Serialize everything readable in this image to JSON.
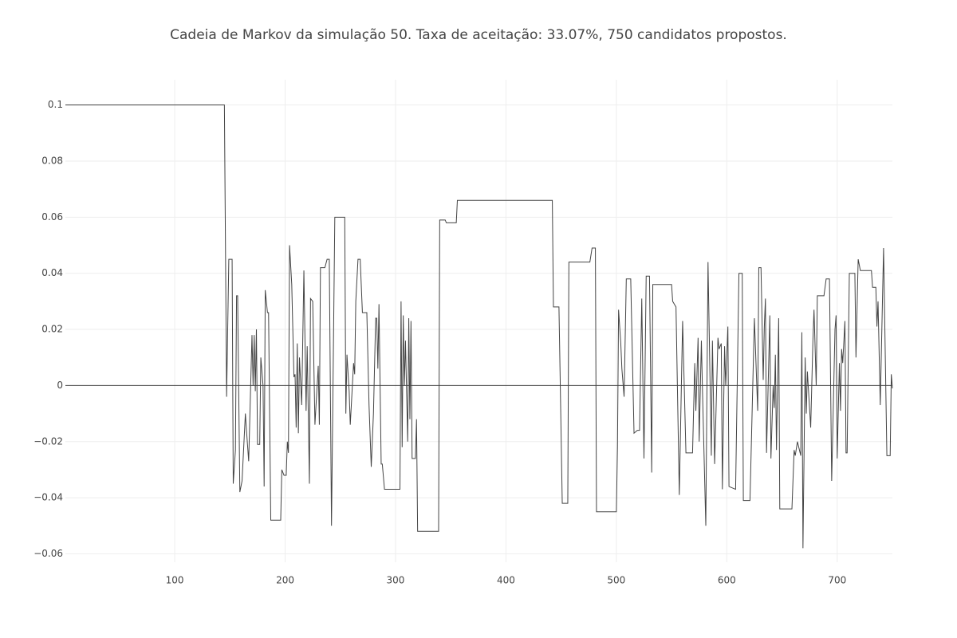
{
  "chart_data": {
    "type": "line",
    "title": "Cadeia de Markov da simulação 50. Taxa de aceitação: 33.07%, 750 candidatos propostos.",
    "color": "#444444",
    "grid": true,
    "zeroline": true,
    "xlim": [
      1,
      750
    ],
    "ylim": [
      -0.063,
      0.109
    ],
    "xticks": [
      100,
      200,
      300,
      400,
      500,
      600,
      700
    ],
    "yticks": [
      {
        "value": -0.06,
        "label": "−0.06"
      },
      {
        "value": -0.04,
        "label": "−0.04"
      },
      {
        "value": -0.02,
        "label": "−0.02"
      },
      0,
      0.02,
      0.04,
      0.06,
      0.08,
      0.1
    ],
    "x": [
      1,
      145,
      147,
      149,
      152,
      153,
      155,
      156,
      157,
      159,
      161,
      164,
      165,
      167,
      170,
      171,
      172,
      173,
      174,
      175,
      177,
      178,
      180,
      181,
      182,
      184,
      185,
      187,
      196,
      197,
      199,
      201,
      202,
      203,
      204,
      206,
      208,
      209,
      210,
      211,
      212,
      213,
      215,
      217,
      219,
      220,
      222,
      223,
      225,
      227,
      230,
      231,
      232,
      236,
      238,
      240,
      242,
      245,
      254,
      255,
      256,
      258,
      259,
      262,
      263,
      264,
      266,
      268,
      270,
      274,
      276,
      278,
      280,
      282,
      283,
      284,
      285,
      287,
      288,
      290,
      304,
      305,
      306,
      307,
      308,
      309,
      311,
      312,
      313,
      314,
      315,
      318,
      319,
      320,
      339,
      340,
      345,
      346,
      355,
      356,
      442,
      443,
      448,
      449,
      451,
      456,
      457,
      476,
      478,
      481,
      482,
      500,
      501,
      502,
      504,
      505,
      507,
      509,
      513,
      516,
      519,
      521,
      523,
      525,
      527,
      530,
      532,
      533,
      550,
      551,
      554,
      557,
      560,
      563,
      569,
      571,
      572,
      574,
      575,
      577,
      578,
      581,
      583,
      586,
      587,
      589,
      592,
      593,
      595,
      596,
      598,
      599,
      601,
      602,
      608,
      611,
      614,
      615,
      621,
      622,
      625,
      628,
      629,
      631,
      633,
      634,
      635,
      636,
      639,
      640,
      642,
      643,
      644,
      645,
      647,
      648,
      659,
      661,
      662,
      664,
      667,
      668,
      669,
      671,
      672,
      673,
      676,
      678,
      679,
      681,
      682,
      688,
      690,
      693,
      695,
      698,
      699,
      700,
      702,
      703,
      704,
      705,
      707,
      708,
      709,
      711,
      716,
      717,
      719,
      721,
      731,
      732,
      735,
      736,
      737,
      739,
      742,
      745,
      748,
      749,
      750
    ],
    "values": [
      0.1,
      0.1,
      -0.004,
      0.045,
      0.045,
      -0.035,
      -0.023,
      0.032,
      0.032,
      -0.038,
      -0.034,
      -0.01,
      -0.016,
      -0.027,
      0.018,
      0.0,
      0.018,
      -0.002,
      0.02,
      -0.021,
      -0.021,
      0.01,
      0.0,
      -0.036,
      0.034,
      0.026,
      0.026,
      -0.048,
      -0.048,
      -0.03,
      -0.032,
      -0.032,
      -0.02,
      -0.024,
      0.05,
      0.036,
      0.003,
      0.004,
      -0.015,
      0.015,
      -0.017,
      0.01,
      -0.007,
      0.041,
      -0.009,
      0.014,
      -0.035,
      0.031,
      0.03,
      -0.014,
      0.007,
      -0.014,
      0.042,
      0.042,
      0.045,
      0.045,
      -0.05,
      0.06,
      0.06,
      -0.01,
      0.011,
      -0.002,
      -0.014,
      0.008,
      0.004,
      0.03,
      0.045,
      0.045,
      0.026,
      0.026,
      -0.007,
      -0.029,
      -0.01,
      0.024,
      0.024,
      0.006,
      0.029,
      -0.028,
      -0.028,
      -0.037,
      -0.037,
      0.03,
      -0.022,
      0.025,
      0.0,
      0.016,
      -0.02,
      0.024,
      -0.012,
      0.023,
      -0.026,
      -0.026,
      -0.012,
      -0.052,
      -0.052,
      0.059,
      0.059,
      0.058,
      0.058,
      0.066,
      0.066,
      0.028,
      0.028,
      0.005,
      -0.042,
      -0.042,
      0.044,
      0.044,
      0.049,
      0.049,
      -0.045,
      -0.045,
      -0.022,
      0.027,
      0.015,
      0.006,
      -0.004,
      0.038,
      0.038,
      -0.017,
      -0.016,
      -0.016,
      0.031,
      -0.026,
      0.039,
      0.039,
      -0.031,
      0.036,
      0.036,
      0.03,
      0.028,
      -0.039,
      0.023,
      -0.024,
      -0.024,
      0.008,
      -0.009,
      0.017,
      -0.02,
      0.016,
      -0.002,
      -0.05,
      0.044,
      -0.025,
      0.016,
      -0.028,
      0.017,
      0.013,
      0.015,
      -0.037,
      0.014,
      0.0,
      0.021,
      -0.036,
      -0.037,
      0.04,
      0.04,
      -0.041,
      -0.041,
      -0.025,
      0.024,
      -0.009,
      0.042,
      0.042,
      0.002,
      0.021,
      0.031,
      -0.024,
      0.025,
      -0.026,
      0.0,
      -0.008,
      0.011,
      -0.023,
      0.024,
      -0.044,
      -0.044,
      -0.023,
      -0.025,
      -0.02,
      -0.025,
      0.019,
      -0.058,
      0.01,
      -0.01,
      0.005,
      -0.015,
      0.016,
      0.027,
      0.0,
      0.032,
      0.032,
      0.038,
      0.038,
      -0.034,
      0.02,
      0.025,
      -0.026,
      0.008,
      -0.009,
      0.013,
      0.008,
      0.023,
      -0.024,
      -0.024,
      0.04,
      0.04,
      0.01,
      0.045,
      0.041,
      0.041,
      0.035,
      0.035,
      0.021,
      0.03,
      -0.007,
      0.049,
      -0.025,
      -0.025,
      0.004,
      -0.001
    ]
  }
}
